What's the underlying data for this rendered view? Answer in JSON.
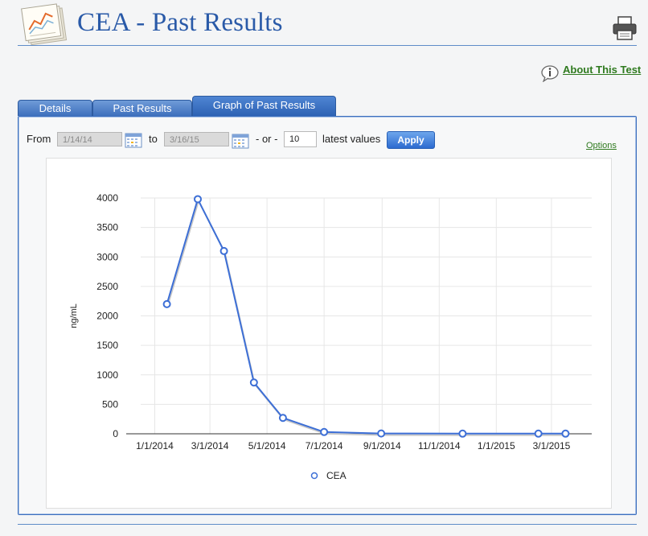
{
  "header": {
    "title": "CEA - Past Results",
    "about_link": "About This Test"
  },
  "tabs": [
    {
      "label": "Details",
      "active": false
    },
    {
      "label": "Past Results",
      "active": false
    },
    {
      "label": "Graph of Past Results",
      "active": true
    }
  ],
  "filter": {
    "from_label": "From",
    "from_value": "1/14/14",
    "to_label": "to",
    "to_value": "3/16/15",
    "or_label": "- or -",
    "latest_count": "10",
    "latest_label": "latest values",
    "apply_label": "Apply",
    "options_label": "Options"
  },
  "chart_data": {
    "type": "line",
    "title": "",
    "xlabel": "",
    "ylabel": "ng/mL",
    "ylim": [
      0,
      4000
    ],
    "yticks": [
      0,
      500,
      1000,
      1500,
      2000,
      2500,
      3000,
      3500,
      4000
    ],
    "xticks": [
      "1/1/2014",
      "3/1/2014",
      "5/1/2014",
      "7/1/2014",
      "9/1/2014",
      "11/1/2014",
      "1/1/2015",
      "3/1/2015"
    ],
    "xlim": [
      "12/17/2013",
      "4/13/2015"
    ],
    "grid": true,
    "legend_position": "bottom",
    "series": [
      {
        "name": "CEA",
        "color": "#3d6fd6",
        "points": [
          {
            "x": "1/14/2014",
            "y": 2200
          },
          {
            "x": "2/16/2014",
            "y": 3980
          },
          {
            "x": "3/16/2014",
            "y": 3100
          },
          {
            "x": "4/17/2014",
            "y": 870
          },
          {
            "x": "5/18/2014",
            "y": 270
          },
          {
            "x": "7/1/2014",
            "y": 30
          },
          {
            "x": "8/31/2014",
            "y": 5
          },
          {
            "x": "11/26/2014",
            "y": 3
          },
          {
            "x": "2/15/2015",
            "y": 3
          },
          {
            "x": "3/16/2015",
            "y": 3
          }
        ]
      }
    ]
  }
}
